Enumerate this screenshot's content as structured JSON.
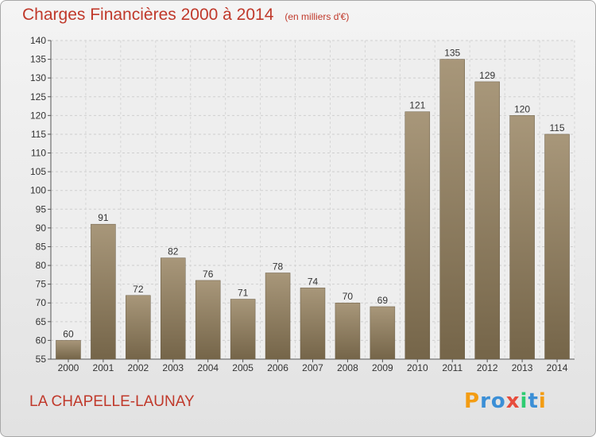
{
  "chart_data": {
    "type": "bar",
    "title": "Charges Financières 2000 à 2014",
    "subtitle": "(en milliers d'€)",
    "categories": [
      "2000",
      "2001",
      "2002",
      "2003",
      "2004",
      "2005",
      "2006",
      "2007",
      "2008",
      "2009",
      "2010",
      "2011",
      "2012",
      "2013",
      "2014"
    ],
    "values": [
      60,
      91,
      72,
      82,
      76,
      71,
      78,
      74,
      70,
      69,
      121,
      135,
      129,
      120,
      115
    ],
    "ylim": [
      55,
      140
    ],
    "yticks": [
      55,
      60,
      65,
      70,
      75,
      80,
      85,
      90,
      95,
      100,
      105,
      110,
      115,
      120,
      125,
      130,
      135,
      140
    ],
    "grid": true,
    "bar_color": "#8b7a5c",
    "title_color": "#c0392b"
  },
  "commune": "LA CHAPELLE-LAUNAY",
  "brand": {
    "letters": [
      "P",
      "r",
      "o",
      "x",
      "i",
      "t",
      "i"
    ],
    "colors": [
      "#f39c12",
      "#3b8fd6",
      "#3b8fd6",
      "#e74c3c",
      "#2ecc71",
      "#3b8fd6",
      "#f39c12"
    ]
  }
}
